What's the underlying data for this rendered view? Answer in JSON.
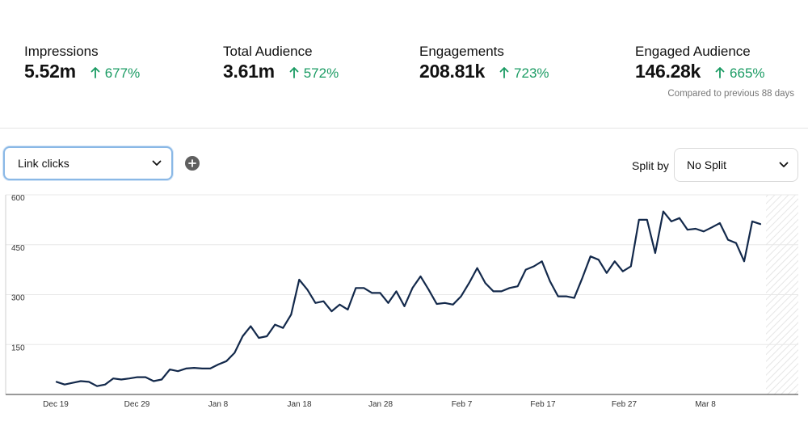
{
  "metrics": [
    {
      "label": "Impressions",
      "value": "5.52m",
      "change": "677%"
    },
    {
      "label": "Total Audience",
      "value": "3.61m",
      "change": "572%"
    },
    {
      "label": "Engagements",
      "value": "208.81k",
      "change": "723%"
    },
    {
      "label": "Engaged Audience",
      "value": "146.28k",
      "change": "665%"
    }
  ],
  "comparison_note": "Compared to previous 88 days",
  "controls": {
    "metric_select": {
      "value": "Link clicks",
      "icon": "chevron-down-icon"
    },
    "add_metric": {
      "icon": "plus-circle-icon"
    },
    "split_label": "Split by",
    "split_select": {
      "value": "No Split",
      "icon": "chevron-down-icon"
    }
  },
  "colors": {
    "line": "#13294b",
    "positive": "#1a9b63",
    "focus": "#8ab8e6"
  },
  "chart_data": {
    "type": "line",
    "title": "",
    "xlabel": "",
    "ylabel": "",
    "ylim": [
      0,
      600
    ],
    "yticks": [
      150,
      300,
      450,
      600
    ],
    "xticks": [
      "Dec 19",
      "Dec 29",
      "Jan 8",
      "Jan 18",
      "Jan 28",
      "Feb 7",
      "Feb 17",
      "Feb 27",
      "Mar 8"
    ],
    "grid": true,
    "legend": "none",
    "series": [
      {
        "values": [
          38,
          30,
          35,
          40,
          38,
          25,
          30,
          48,
          45,
          48,
          52,
          52,
          40,
          45,
          75,
          70,
          78,
          80,
          78,
          78,
          90,
          100,
          125,
          175,
          205,
          170,
          175,
          210,
          200,
          240,
          345,
          315,
          275,
          280,
          250,
          270,
          255,
          320,
          320,
          305,
          305,
          275,
          310,
          265,
          320,
          355,
          315,
          272,
          275,
          270,
          295,
          335,
          380,
          335,
          310,
          310,
          320,
          325,
          375,
          385,
          400,
          340,
          295,
          295,
          290,
          350,
          415,
          405,
          365,
          400,
          370,
          385,
          525,
          525,
          425,
          550,
          520,
          530,
          495,
          498,
          490,
          502,
          515,
          465,
          455,
          400,
          520,
          512
        ]
      }
    ]
  }
}
